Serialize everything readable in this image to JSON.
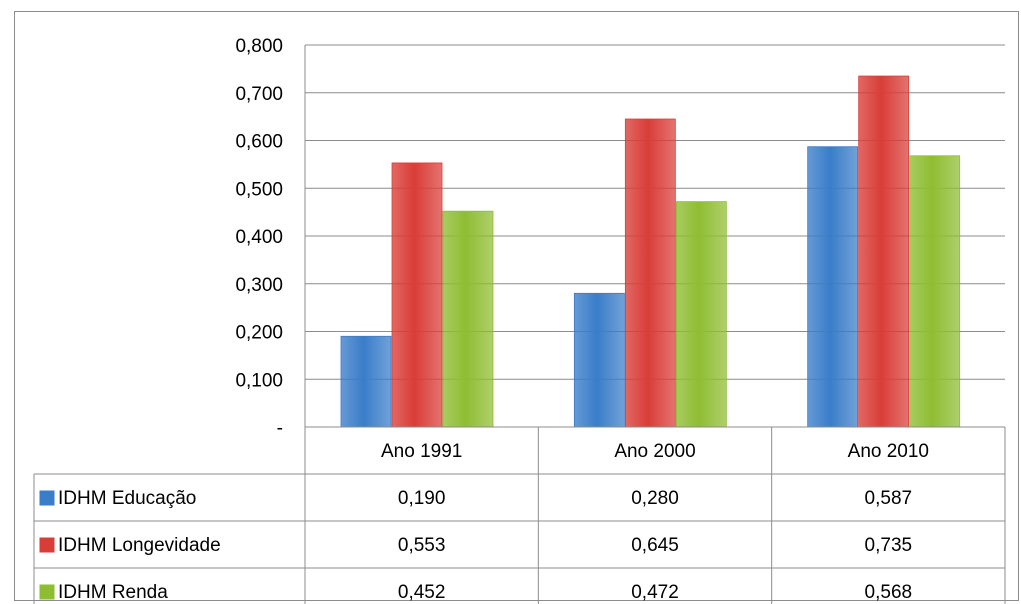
{
  "chart_data": {
    "type": "bar",
    "categories": [
      "Ano 1991",
      "Ano 2000",
      "Ano 2010"
    ],
    "series": [
      {
        "name": "IDHM Educação",
        "values": [
          0.19,
          0.28,
          0.587
        ],
        "labels": [
          "0,190",
          "0,280",
          "0,587"
        ],
        "color": "#3a7dc9"
      },
      {
        "name": "IDHM Longevidade",
        "values": [
          0.553,
          0.645,
          0.735
        ],
        "labels": [
          "0,553",
          "0,645",
          "0,735"
        ],
        "color": "#d93d38"
      },
      {
        "name": "IDHM Renda",
        "values": [
          0.452,
          0.472,
          0.568
        ],
        "labels": [
          "0,452",
          "0,472",
          "0,568"
        ],
        "color": "#8fbd32"
      }
    ],
    "ylim": [
      0,
      0.8
    ],
    "yticks": [
      {
        "value": 0,
        "label": "-"
      },
      {
        "value": 0.1,
        "label": "0,100"
      },
      {
        "value": 0.2,
        "label": "0,200"
      },
      {
        "value": 0.3,
        "label": "0,300"
      },
      {
        "value": 0.4,
        "label": "0,400"
      },
      {
        "value": 0.5,
        "label": "0,500"
      },
      {
        "value": 0.6,
        "label": "0,600"
      },
      {
        "value": 0.7,
        "label": "0,700"
      },
      {
        "value": 0.8,
        "label": "0,800"
      }
    ],
    "grid": true,
    "legend": "data-table",
    "title": "",
    "xlabel": "",
    "ylabel": ""
  }
}
